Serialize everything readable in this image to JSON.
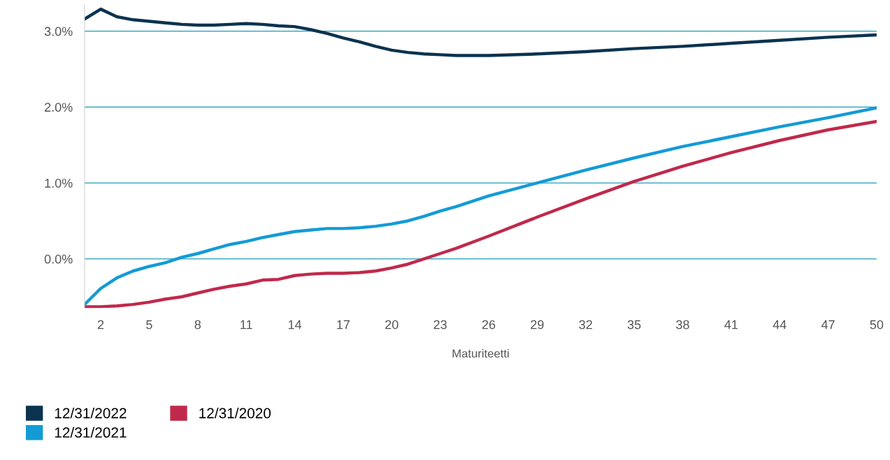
{
  "chart_data": {
    "type": "line",
    "xlabel": "Maturiteetti",
    "xlim": [
      1,
      50
    ],
    "xticks": [
      2,
      5,
      8,
      11,
      14,
      17,
      20,
      23,
      26,
      29,
      32,
      35,
      38,
      41,
      44,
      47,
      50
    ],
    "ylim": [
      -0.65,
      3.35
    ],
    "yticks": [
      {
        "value": 0,
        "label": "0.0%"
      },
      {
        "value": 1,
        "label": "1.0%"
      },
      {
        "value": 2,
        "label": "2.0%"
      },
      {
        "value": 3,
        "label": "3.0%"
      }
    ],
    "grid": "y",
    "legend": "bottom left",
    "x": [
      1,
      2,
      3,
      4,
      5,
      6,
      7,
      8,
      9,
      10,
      11,
      12,
      13,
      14,
      15,
      16,
      17,
      18,
      19,
      20,
      21,
      22,
      23,
      24,
      26,
      29,
      32,
      35,
      38,
      41,
      44,
      47,
      50
    ],
    "series": [
      {
        "name": "12/31/2022",
        "color": "#0b3350",
        "values": [
          3.16,
          3.29,
          3.19,
          3.15,
          3.13,
          3.11,
          3.09,
          3.08,
          3.08,
          3.09,
          3.1,
          3.09,
          3.07,
          3.06,
          3.02,
          2.97,
          2.91,
          2.86,
          2.8,
          2.75,
          2.72,
          2.7,
          2.69,
          2.68,
          2.68,
          2.7,
          2.73,
          2.77,
          2.8,
          2.84,
          2.88,
          2.92,
          2.95
        ]
      },
      {
        "name": "12/31/2021",
        "color": "#139bd6",
        "values": [
          -0.6,
          -0.39,
          -0.25,
          -0.16,
          -0.1,
          -0.05,
          0.02,
          0.07,
          0.13,
          0.19,
          0.23,
          0.28,
          0.32,
          0.36,
          0.38,
          0.4,
          0.4,
          0.41,
          0.43,
          0.46,
          0.5,
          0.56,
          0.63,
          0.69,
          0.83,
          1.0,
          1.17,
          1.33,
          1.48,
          1.61,
          1.74,
          1.86,
          1.99
        ]
      },
      {
        "name": "12/31/2020",
        "color": "#c0294b",
        "values": [
          -0.63,
          -0.63,
          -0.62,
          -0.6,
          -0.57,
          -0.53,
          -0.5,
          -0.45,
          -0.4,
          -0.36,
          -0.33,
          -0.28,
          -0.27,
          -0.22,
          -0.2,
          -0.19,
          -0.19,
          -0.18,
          -0.16,
          -0.12,
          -0.07,
          0.0,
          0.07,
          0.14,
          0.3,
          0.55,
          0.79,
          1.02,
          1.22,
          1.4,
          1.56,
          1.7,
          1.81
        ]
      }
    ]
  }
}
